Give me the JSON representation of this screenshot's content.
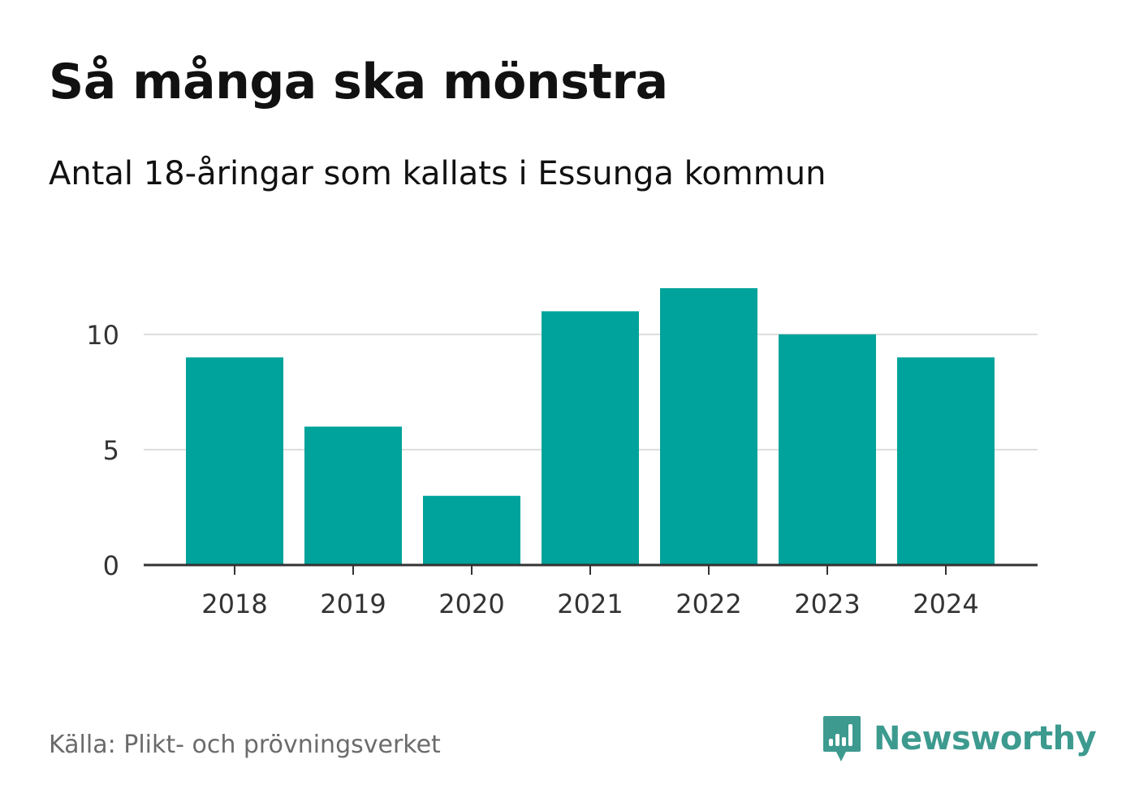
{
  "header": {
    "title": "Så många ska mönstra",
    "subtitle": "Antal 18-åringar som kallats i Essunga kommun"
  },
  "chart_data": {
    "type": "bar",
    "title": "Så många ska mönstra",
    "subtitle": "Antal 18-åringar som kallats i Essunga kommun",
    "categories": [
      "2018",
      "2019",
      "2020",
      "2021",
      "2022",
      "2023",
      "2024"
    ],
    "values": [
      9,
      6,
      3,
      11,
      12,
      10,
      9
    ],
    "xlabel": "",
    "ylabel": "",
    "ylim": [
      0,
      12
    ],
    "yticks": [
      0,
      5,
      10
    ],
    "ytick_labels": [
      "0",
      "5",
      "10"
    ],
    "grid": true,
    "colors": {
      "bar": "#00a39b",
      "grid": "#dddddd",
      "axis": "#333333",
      "tick_text": "#333333"
    }
  },
  "footer": {
    "source": "Källa: Plikt- och prövningsverket",
    "brand": "Newsworthy",
    "brand_icon": "newsworthy-logo-icon",
    "brand_color": "#3d9a8f"
  }
}
